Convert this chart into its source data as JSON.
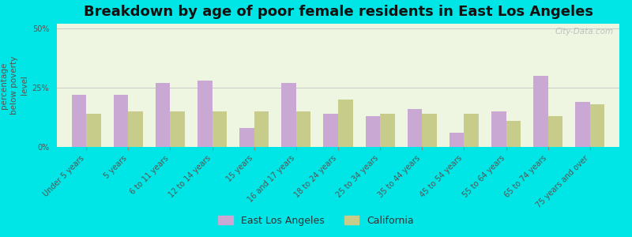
{
  "title": "Breakdown by age of poor female residents in East Los Angeles",
  "categories": [
    "Under 5 years",
    "5 years",
    "6 to 11 years",
    "12 to 14 years",
    "15 years",
    "16 and 17 years",
    "18 to 24 years",
    "25 to 34 years",
    "35 to 44 years",
    "45 to 54 years",
    "55 to 64 years",
    "65 to 74 years",
    "75 years and over"
  ],
  "east_la": [
    22,
    22,
    27,
    28,
    8,
    27,
    14,
    13,
    16,
    6,
    15,
    30,
    19
  ],
  "california": [
    14,
    15,
    15,
    15,
    15,
    15,
    20,
    14,
    14,
    14,
    11,
    13,
    18
  ],
  "east_la_color": "#c9a8d4",
  "california_color": "#c8cc8a",
  "ylabel": "percentage\nbelow poverty\nlevel",
  "yticks": [
    0,
    25,
    50
  ],
  "ylim": [
    0,
    52
  ],
  "background_color": "#eef5e0",
  "outer_background": "#00e5e5",
  "title_fontsize": 13,
  "axis_label_fontsize": 7.5,
  "tick_fontsize": 7,
  "legend_fontsize": 9,
  "watermark": "City-Data.com"
}
